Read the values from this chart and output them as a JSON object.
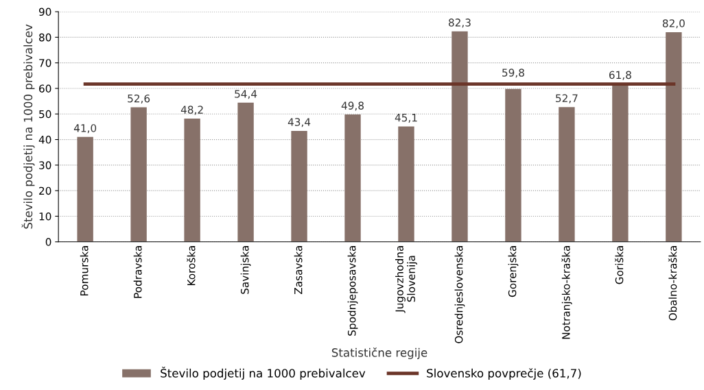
{
  "chart_data": {
    "type": "bar",
    "xlabel": "Statistične regije",
    "ylabel": "Število podjetij na 1000 prebivalcev",
    "categories": [
      "Pomurska",
      "Podravska",
      "Koroška",
      "Savinjska",
      "Zasavska",
      "Spodnjeposavska",
      "Jugovzhodna\nSlovenija",
      "Osrednjeslovenska",
      "Gorenjska",
      "Notranjsko-kraška",
      "Goriška",
      "Obalno-kraška"
    ],
    "series": [
      {
        "name": "Število podjetij na 1000 prebivalcev",
        "color": "#877169",
        "values": [
          41.0,
          52.6,
          48.2,
          54.4,
          43.4,
          49.8,
          45.1,
          82.3,
          59.8,
          52.7,
          61.8,
          82.0
        ],
        "value_labels": [
          "41,0",
          "52,6",
          "48,2",
          "54,4",
          "43,4",
          "49,8",
          "45,1",
          "82,3",
          "59,8",
          "52,7",
          "61,8",
          "82,0"
        ]
      },
      {
        "name": "Slovensko povprečje (61,7)",
        "type": "line",
        "color": "#6b3528",
        "values": [
          61.7,
          61.7,
          61.7,
          61.7,
          61.7,
          61.7,
          61.7,
          61.7,
          61.7,
          61.7,
          61.7,
          61.7
        ]
      }
    ],
    "ylim": [
      0,
      90
    ],
    "yticks": [
      0,
      10,
      20,
      30,
      40,
      50,
      60,
      70,
      80,
      90
    ],
    "grid": "y",
    "legend": "bottom",
    "line_style": "solid",
    "marker": "none"
  }
}
